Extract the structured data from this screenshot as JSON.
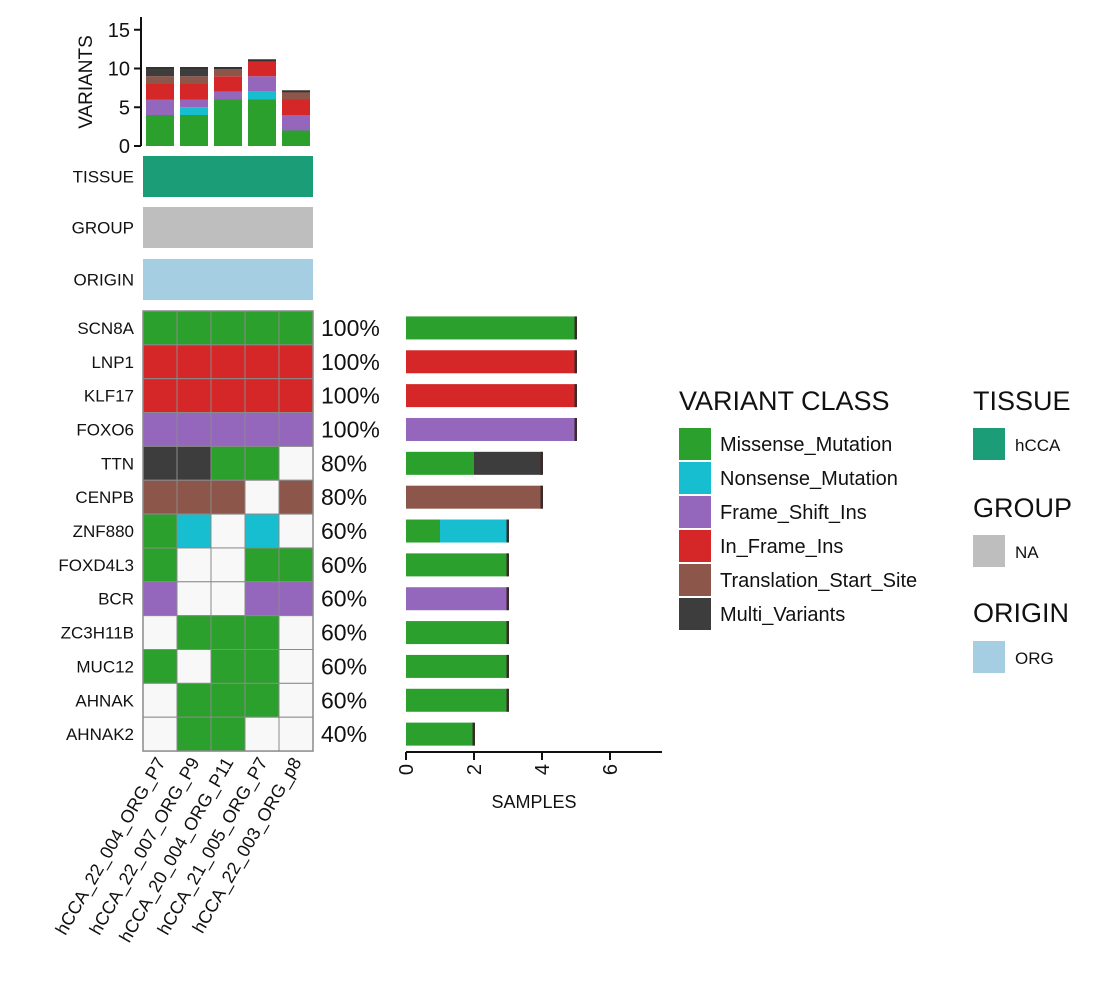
{
  "colors": {
    "Missense_Mutation": "#2ca02c",
    "Nonsense_Mutation": "#17becf",
    "Frame_Shift_Ins": "#9467bd",
    "In_Frame_Ins": "#d62728",
    "Translation_Start_Site": "#8c564b",
    "Multi_Variants": "#3d3d3d",
    "none": "#f8f8f8",
    "tissue_hCCA": "#1b9e77",
    "group_NA": "#bebebe",
    "origin_ORG": "#a6cee3"
  },
  "chart_data": [
    {
      "type": "bar",
      "title": "",
      "stacked": true,
      "ylabel": "VARIANTS",
      "ylim": [
        0,
        16
      ],
      "yticks": [
        "0",
        "5",
        "10",
        "15"
      ],
      "categories": [
        "hCCA_22_004_ORG_P7",
        "hCCA_22_007_ORG_P9",
        "hCCA_20_004_ORG_P11",
        "hCCA_21_005_ORG_P7",
        "hCCA_22_003_ORG_p8"
      ],
      "series": [
        {
          "name": "Missense_Mutation",
          "values": [
            4,
            4,
            6,
            6,
            2
          ]
        },
        {
          "name": "Nonsense_Mutation",
          "values": [
            0,
            1,
            0,
            1,
            0
          ]
        },
        {
          "name": "Frame_Shift_Ins",
          "values": [
            2,
            1,
            1,
            2,
            2
          ]
        },
        {
          "name": "In_Frame_Ins",
          "values": [
            2,
            2,
            2,
            2,
            2
          ]
        },
        {
          "name": "Translation_Start_Site",
          "values": [
            1,
            1,
            1,
            0,
            1
          ]
        },
        {
          "name": "Multi_Variants",
          "values": [
            1,
            1,
            0,
            0,
            0
          ]
        }
      ]
    },
    {
      "type": "heatmap",
      "annotation_tracks": [
        {
          "label": "TISSUE",
          "value": "hCCA"
        },
        {
          "label": "GROUP",
          "value": "NA"
        },
        {
          "label": "ORIGIN",
          "value": "ORG"
        }
      ],
      "samples": [
        "hCCA_22_004_ORG_P7",
        "hCCA_22_007_ORG_P9",
        "hCCA_20_004_ORG_P11",
        "hCCA_21_005_ORG_P7",
        "hCCA_22_003_ORG_p8"
      ],
      "genes": [
        {
          "name": "SCN8A",
          "pct": "100%",
          "cells": [
            "Missense_Mutation",
            "Missense_Mutation",
            "Missense_Mutation",
            "Missense_Mutation",
            "Missense_Mutation"
          ]
        },
        {
          "name": "LNP1",
          "pct": "100%",
          "cells": [
            "In_Frame_Ins",
            "In_Frame_Ins",
            "In_Frame_Ins",
            "In_Frame_Ins",
            "In_Frame_Ins"
          ]
        },
        {
          "name": "KLF17",
          "pct": "100%",
          "cells": [
            "In_Frame_Ins",
            "In_Frame_Ins",
            "In_Frame_Ins",
            "In_Frame_Ins",
            "In_Frame_Ins"
          ]
        },
        {
          "name": "FOXO6",
          "pct": "100%",
          "cells": [
            "Frame_Shift_Ins",
            "Frame_Shift_Ins",
            "Frame_Shift_Ins",
            "Frame_Shift_Ins",
            "Frame_Shift_Ins"
          ]
        },
        {
          "name": "TTN",
          "pct": "80%",
          "cells": [
            "Multi_Variants",
            "Multi_Variants",
            "Missense_Mutation",
            "Missense_Mutation",
            "none"
          ]
        },
        {
          "name": "CENPB",
          "pct": "80%",
          "cells": [
            "Translation_Start_Site",
            "Translation_Start_Site",
            "Translation_Start_Site",
            "none",
            "Translation_Start_Site"
          ]
        },
        {
          "name": "ZNF880",
          "pct": "60%",
          "cells": [
            "Missense_Mutation",
            "Nonsense_Mutation",
            "none",
            "Nonsense_Mutation",
            "none"
          ]
        },
        {
          "name": "FOXD4L3",
          "pct": "60%",
          "cells": [
            "Missense_Mutation",
            "none",
            "none",
            "Missense_Mutation",
            "Missense_Mutation"
          ]
        },
        {
          "name": "BCR",
          "pct": "60%",
          "cells": [
            "Frame_Shift_Ins",
            "none",
            "none",
            "Frame_Shift_Ins",
            "Frame_Shift_Ins"
          ]
        },
        {
          "name": "ZC3H11B",
          "pct": "60%",
          "cells": [
            "none",
            "Missense_Mutation",
            "Missense_Mutation",
            "Missense_Mutation",
            "none"
          ]
        },
        {
          "name": "MUC12",
          "pct": "60%",
          "cells": [
            "Missense_Mutation",
            "none",
            "Missense_Mutation",
            "Missense_Mutation",
            "none"
          ]
        },
        {
          "name": "AHNAK",
          "pct": "60%",
          "cells": [
            "none",
            "Missense_Mutation",
            "Missense_Mutation",
            "Missense_Mutation",
            "none"
          ]
        },
        {
          "name": "AHNAK2",
          "pct": "40%",
          "cells": [
            "none",
            "Missense_Mutation",
            "Missense_Mutation",
            "none",
            "none"
          ]
        }
      ]
    },
    {
      "type": "bar",
      "orientation": "horizontal",
      "stacked": true,
      "xlabel": "SAMPLES",
      "xlim": [
        0,
        7.5
      ],
      "xticks": [
        "0",
        "2",
        "4",
        "6"
      ],
      "categories": [
        "SCN8A",
        "LNP1",
        "KLF17",
        "FOXO6",
        "TTN",
        "CENPB",
        "ZNF880",
        "FOXD4L3",
        "BCR",
        "ZC3H11B",
        "MUC12",
        "AHNAK",
        "AHNAK2"
      ],
      "segments": [
        [
          {
            "class": "Missense_Mutation",
            "value": 5
          }
        ],
        [
          {
            "class": "In_Frame_Ins",
            "value": 5
          }
        ],
        [
          {
            "class": "In_Frame_Ins",
            "value": 5
          }
        ],
        [
          {
            "class": "Frame_Shift_Ins",
            "value": 5
          }
        ],
        [
          {
            "class": "Missense_Mutation",
            "value": 2
          },
          {
            "class": "Multi_Variants",
            "value": 2
          }
        ],
        [
          {
            "class": "Translation_Start_Site",
            "value": 4
          }
        ],
        [
          {
            "class": "Missense_Mutation",
            "value": 1
          },
          {
            "class": "Nonsense_Mutation",
            "value": 2
          }
        ],
        [
          {
            "class": "Missense_Mutation",
            "value": 3
          }
        ],
        [
          {
            "class": "Frame_Shift_Ins",
            "value": 3
          }
        ],
        [
          {
            "class": "Missense_Mutation",
            "value": 3
          }
        ],
        [
          {
            "class": "Missense_Mutation",
            "value": 3
          }
        ],
        [
          {
            "class": "Missense_Mutation",
            "value": 3
          }
        ],
        [
          {
            "class": "Missense_Mutation",
            "value": 2
          }
        ]
      ]
    }
  ],
  "legend": {
    "variant_class": {
      "title": "VARIANT CLASS",
      "items": [
        "Missense_Mutation",
        "Nonsense_Mutation",
        "Frame_Shift_Ins",
        "In_Frame_Ins",
        "Translation_Start_Site",
        "Multi_Variants"
      ]
    },
    "tissue": {
      "title": "TISSUE",
      "items": [
        {
          "label": "hCCA",
          "color_key": "tissue_hCCA"
        }
      ]
    },
    "group": {
      "title": "GROUP",
      "items": [
        {
          "label": "NA",
          "color_key": "group_NA"
        }
      ]
    },
    "origin": {
      "title": "ORIGIN",
      "items": [
        {
          "label": "ORG",
          "color_key": "origin_ORG"
        }
      ]
    }
  }
}
